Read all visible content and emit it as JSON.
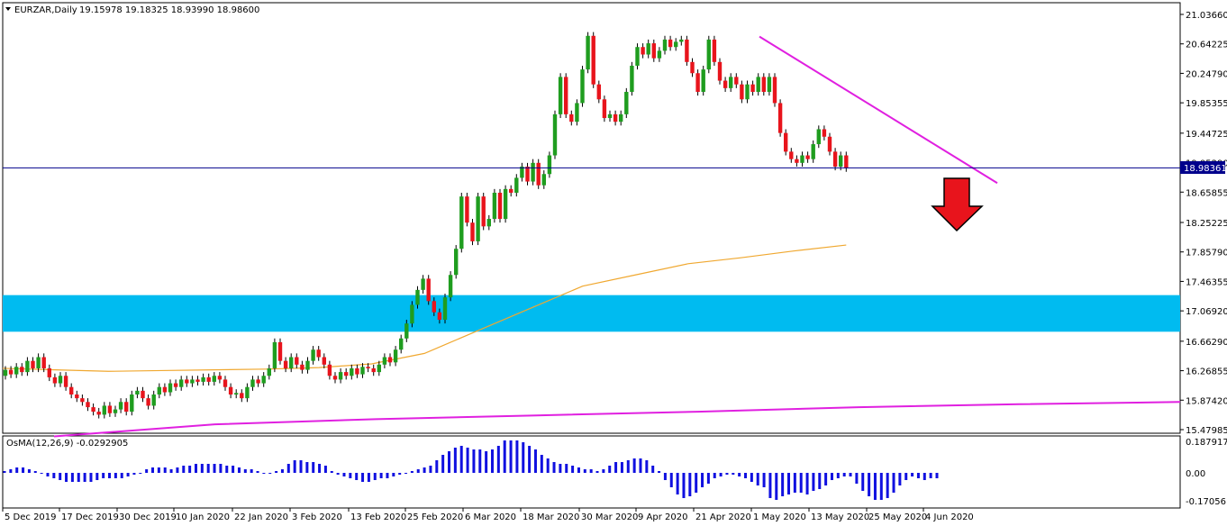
{
  "header": {
    "symbol": "EURZAR,Daily",
    "ohlc": "19.15978 19.18325 18.93990 18.98600"
  },
  "indicator": {
    "label": "OsMA(12,26,9) -0.0292905",
    "y_ticks": [
      "0.1879171",
      "0.00",
      "-0.1705618"
    ]
  },
  "price_tag": "18.98361",
  "colors": {
    "bull": "#1f9d1f",
    "bear": "#e8141c",
    "zone": "#00bbf0",
    "ma": "#f0a830",
    "trendline": "#e020e0",
    "histogram": "#1010e0",
    "price_line": "#00008c",
    "arrow": "#e8141c"
  },
  "chart_data": {
    "type": "candlestick",
    "y_ticks": [
      "21.03660",
      "20.64225",
      "20.24790",
      "19.85355",
      "19.44725",
      "19.05290",
      "18.65855",
      "18.25225",
      "17.85790",
      "17.46355",
      "17.06920",
      "16.66290",
      "16.26855",
      "15.87420",
      "15.47985"
    ],
    "ylim": [
      15.45,
      21.1
    ],
    "x_labels": [
      "5 Dec 2019",
      "17 Dec 2019",
      "30 Dec 2019",
      "10 Jan 2020",
      "22 Jan 2020",
      "3 Feb 2020",
      "13 Feb 2020",
      "25 Feb 2020",
      "6 Mar 2020",
      "18 Mar 2020",
      "30 Mar 2020",
      "9 Apr 2020",
      "21 Apr 2020",
      "1 May 2020",
      "13 May 2020",
      "25 May 2020",
      "4 Jun 2020"
    ],
    "current_price": 18.98361,
    "supply_zone": [
      16.79,
      17.28
    ],
    "candles": [
      [
        16.2,
        16.28
      ],
      [
        16.28,
        16.22
      ],
      [
        16.22,
        16.32
      ],
      [
        16.32,
        16.25
      ],
      [
        16.25,
        16.4
      ],
      [
        16.4,
        16.3
      ],
      [
        16.3,
        16.45
      ],
      [
        16.45,
        16.3
      ],
      [
        16.3,
        16.18
      ],
      [
        16.18,
        16.1
      ],
      [
        16.1,
        16.2
      ],
      [
        16.2,
        16.05
      ],
      [
        16.05,
        15.95
      ],
      [
        15.95,
        15.9
      ],
      [
        15.9,
        15.85
      ],
      [
        15.85,
        15.78
      ],
      [
        15.78,
        15.72
      ],
      [
        15.72,
        15.68
      ],
      [
        15.68,
        15.8
      ],
      [
        15.8,
        15.7
      ],
      [
        15.7,
        15.75
      ],
      [
        15.75,
        15.85
      ],
      [
        15.85,
        15.72
      ],
      [
        15.72,
        15.95
      ],
      [
        15.95,
        16.0
      ],
      [
        16.0,
        15.9
      ],
      [
        15.9,
        15.8
      ],
      [
        15.8,
        15.95
      ],
      [
        15.95,
        16.05
      ],
      [
        16.05,
        15.98
      ],
      [
        15.98,
        16.1
      ],
      [
        16.1,
        16.05
      ],
      [
        16.05,
        16.15
      ],
      [
        16.15,
        16.1
      ],
      [
        16.1,
        16.15
      ],
      [
        16.15,
        16.12
      ],
      [
        16.12,
        16.18
      ],
      [
        16.18,
        16.12
      ],
      [
        16.12,
        16.2
      ],
      [
        16.2,
        16.15
      ],
      [
        16.15,
        16.05
      ],
      [
        16.05,
        15.95
      ],
      [
        15.95,
        15.97
      ],
      [
        15.97,
        15.9
      ],
      [
        15.9,
        16.05
      ],
      [
        16.05,
        16.15
      ],
      [
        16.15,
        16.1
      ],
      [
        16.1,
        16.2
      ],
      [
        16.2,
        16.3
      ],
      [
        16.3,
        16.65
      ],
      [
        16.65,
        16.4
      ],
      [
        16.4,
        16.3
      ],
      [
        16.3,
        16.45
      ],
      [
        16.45,
        16.35
      ],
      [
        16.35,
        16.28
      ],
      [
        16.28,
        16.4
      ],
      [
        16.4,
        16.55
      ],
      [
        16.55,
        16.45
      ],
      [
        16.45,
        16.35
      ],
      [
        16.35,
        16.2
      ],
      [
        16.2,
        16.15
      ],
      [
        16.15,
        16.25
      ],
      [
        16.25,
        16.2
      ],
      [
        16.2,
        16.3
      ],
      [
        16.3,
        16.22
      ],
      [
        16.22,
        16.32
      ],
      [
        16.32,
        16.3
      ],
      [
        16.3,
        16.25
      ],
      [
        16.25,
        16.35
      ],
      [
        16.35,
        16.45
      ],
      [
        16.45,
        16.38
      ],
      [
        16.38,
        16.55
      ],
      [
        16.55,
        16.7
      ],
      [
        16.7,
        16.9
      ],
      [
        16.9,
        17.15
      ],
      [
        17.15,
        17.35
      ],
      [
        17.35,
        17.5
      ],
      [
        17.5,
        17.2
      ],
      [
        17.2,
        17.05
      ],
      [
        17.05,
        16.95
      ],
      [
        16.95,
        17.25
      ],
      [
        17.25,
        17.55
      ],
      [
        17.55,
        17.9
      ],
      [
        17.9,
        18.6
      ],
      [
        18.6,
        18.25
      ],
      [
        18.25,
        18.0
      ],
      [
        18.0,
        18.6
      ],
      [
        18.6,
        18.2
      ],
      [
        18.2,
        18.3
      ],
      [
        18.3,
        18.65
      ],
      [
        18.65,
        18.3
      ],
      [
        18.3,
        18.7
      ],
      [
        18.7,
        18.65
      ],
      [
        18.65,
        18.85
      ],
      [
        18.85,
        19.0
      ],
      [
        19.0,
        18.8
      ],
      [
        18.8,
        19.05
      ],
      [
        19.05,
        18.75
      ],
      [
        18.75,
        18.9
      ],
      [
        18.9,
        19.15
      ],
      [
        19.15,
        19.7
      ],
      [
        19.7,
        20.2
      ],
      [
        20.2,
        19.7
      ],
      [
        19.7,
        19.6
      ],
      [
        19.6,
        19.85
      ],
      [
        19.85,
        20.3
      ],
      [
        20.3,
        20.75
      ],
      [
        20.75,
        20.1
      ],
      [
        20.1,
        19.9
      ],
      [
        19.9,
        19.65
      ],
      [
        19.65,
        19.7
      ],
      [
        19.7,
        19.6
      ],
      [
        19.6,
        19.7
      ],
      [
        19.7,
        20.0
      ],
      [
        20.0,
        20.35
      ],
      [
        20.35,
        20.6
      ],
      [
        20.6,
        20.5
      ],
      [
        20.5,
        20.65
      ],
      [
        20.65,
        20.45
      ],
      [
        20.45,
        20.55
      ],
      [
        20.55,
        20.7
      ],
      [
        20.7,
        20.6
      ],
      [
        20.6,
        20.67
      ],
      [
        20.67,
        20.7
      ],
      [
        20.7,
        20.4
      ],
      [
        20.4,
        20.25
      ],
      [
        20.25,
        20.0
      ],
      [
        20.0,
        20.3
      ],
      [
        20.3,
        20.7
      ],
      [
        20.7,
        20.4
      ],
      [
        20.4,
        20.15
      ],
      [
        20.15,
        20.05
      ],
      [
        20.05,
        20.2
      ],
      [
        20.2,
        20.1
      ],
      [
        20.1,
        19.9
      ],
      [
        19.9,
        20.1
      ],
      [
        20.1,
        20.0
      ],
      [
        20.0,
        20.2
      ],
      [
        20.2,
        20.0
      ],
      [
        20.0,
        20.2
      ],
      [
        20.2,
        19.85
      ],
      [
        19.85,
        19.45
      ],
      [
        19.45,
        19.2
      ],
      [
        19.2,
        19.1
      ],
      [
        19.1,
        19.05
      ],
      [
        19.05,
        19.15
      ],
      [
        19.15,
        19.1
      ],
      [
        19.1,
        19.3
      ],
      [
        19.3,
        19.5
      ],
      [
        19.5,
        19.4
      ],
      [
        19.4,
        19.2
      ],
      [
        19.2,
        19.0
      ],
      [
        19.0,
        19.15
      ],
      [
        19.15,
        18.98
      ]
    ],
    "ma_slow": [
      16.3,
      16.28,
      16.26,
      16.27,
      16.28,
      16.29,
      16.31,
      16.36,
      16.5,
      16.8,
      17.1,
      17.4,
      17.55,
      17.7,
      17.78,
      17.87,
      17.95
    ],
    "ma_long": [
      15.39,
      15.55,
      15.62,
      15.67,
      15.72,
      15.78,
      15.82,
      15.85
    ],
    "trendline": [
      [
        20.7,
        19.3
      ],
      [
        18.78
      ]
    ],
    "osma": [
      0.01,
      0.02,
      0.03,
      0.03,
      0.02,
      0.01,
      0.0,
      -0.02,
      -0.03,
      -0.04,
      -0.05,
      -0.05,
      -0.05,
      -0.05,
      -0.05,
      -0.04,
      -0.03,
      -0.03,
      -0.03,
      -0.03,
      -0.02,
      -0.01,
      0.0,
      0.02,
      0.03,
      0.03,
      0.03,
      0.02,
      0.03,
      0.04,
      0.04,
      0.05,
      0.05,
      0.05,
      0.05,
      0.05,
      0.04,
      0.04,
      0.03,
      0.02,
      0.02,
      0.01,
      0.0,
      0.0,
      0.01,
      0.02,
      0.05,
      0.07,
      0.07,
      0.06,
      0.06,
      0.05,
      0.04,
      0.01,
      -0.01,
      -0.02,
      -0.03,
      -0.04,
      -0.05,
      -0.05,
      -0.04,
      -0.03,
      -0.03,
      -0.02,
      -0.01,
      0.0,
      0.01,
      0.02,
      0.03,
      0.04,
      0.07,
      0.1,
      0.12,
      0.14,
      0.15,
      0.14,
      0.13,
      0.13,
      0.12,
      0.13,
      0.15,
      0.18,
      0.18,
      0.18,
      0.17,
      0.15,
      0.13,
      0.1,
      0.08,
      0.06,
      0.05,
      0.05,
      0.04,
      0.03,
      0.02,
      0.02,
      0.01,
      0.02,
      0.04,
      0.06,
      0.06,
      0.07,
      0.08,
      0.08,
      0.07,
      0.04,
      0.01,
      -0.04,
      -0.08,
      -0.12,
      -0.14,
      -0.13,
      -0.11,
      -0.08,
      -0.06,
      -0.03,
      -0.02,
      -0.01,
      -0.01,
      -0.02,
      -0.03,
      -0.05,
      -0.07,
      -0.08,
      -0.14,
      -0.15,
      -0.13,
      -0.12,
      -0.11,
      -0.11,
      -0.12,
      -0.1,
      -0.09,
      -0.07,
      -0.04,
      -0.03,
      -0.02,
      -0.02,
      -0.06,
      -0.1,
      -0.13,
      -0.15,
      -0.15,
      -0.14,
      -0.11,
      -0.07,
      -0.04,
      -0.02,
      -0.03,
      -0.04,
      -0.03,
      -0.03
    ]
  }
}
